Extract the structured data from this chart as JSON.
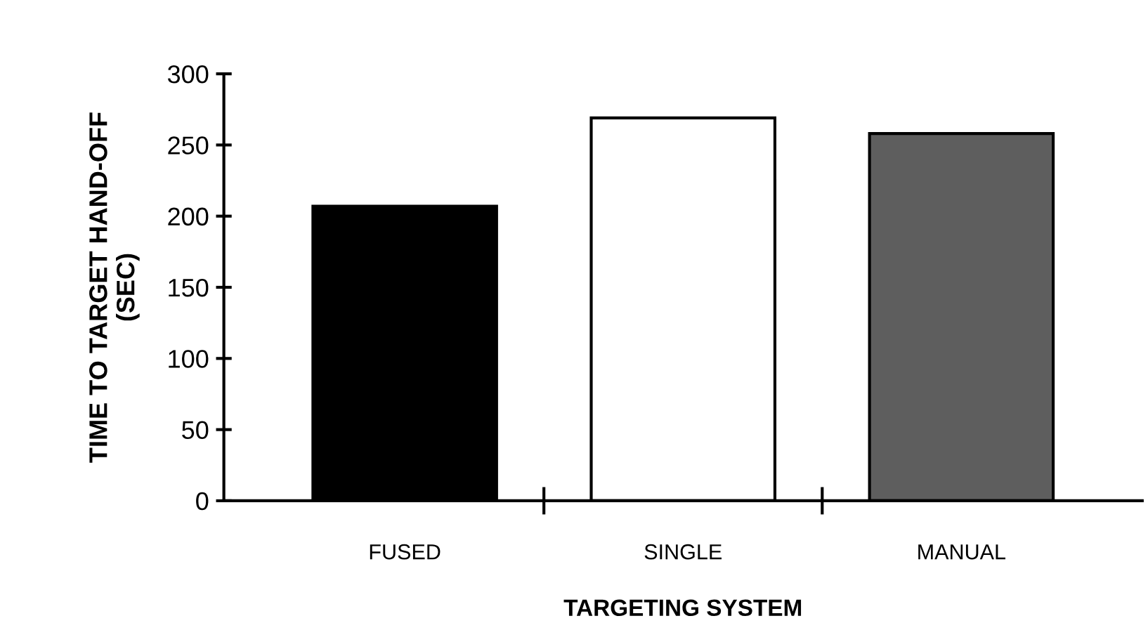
{
  "chart_data": {
    "type": "bar",
    "xlabel": "TARGETING SYSTEM",
    "ylabel": "TIME TO TARGET HAND-OFF\n(SEC)",
    "categories": [
      "FUSED",
      "SINGLE",
      "MANUAL"
    ],
    "values": [
      207,
      269,
      258
    ],
    "colors": [
      "#000000",
      "#ffffff",
      "#5e5e5e"
    ],
    "ylim": [
      0,
      300
    ],
    "yticks": [
      0,
      50,
      100,
      150,
      200,
      250,
      300
    ],
    "grid": false,
    "legend": false
  }
}
